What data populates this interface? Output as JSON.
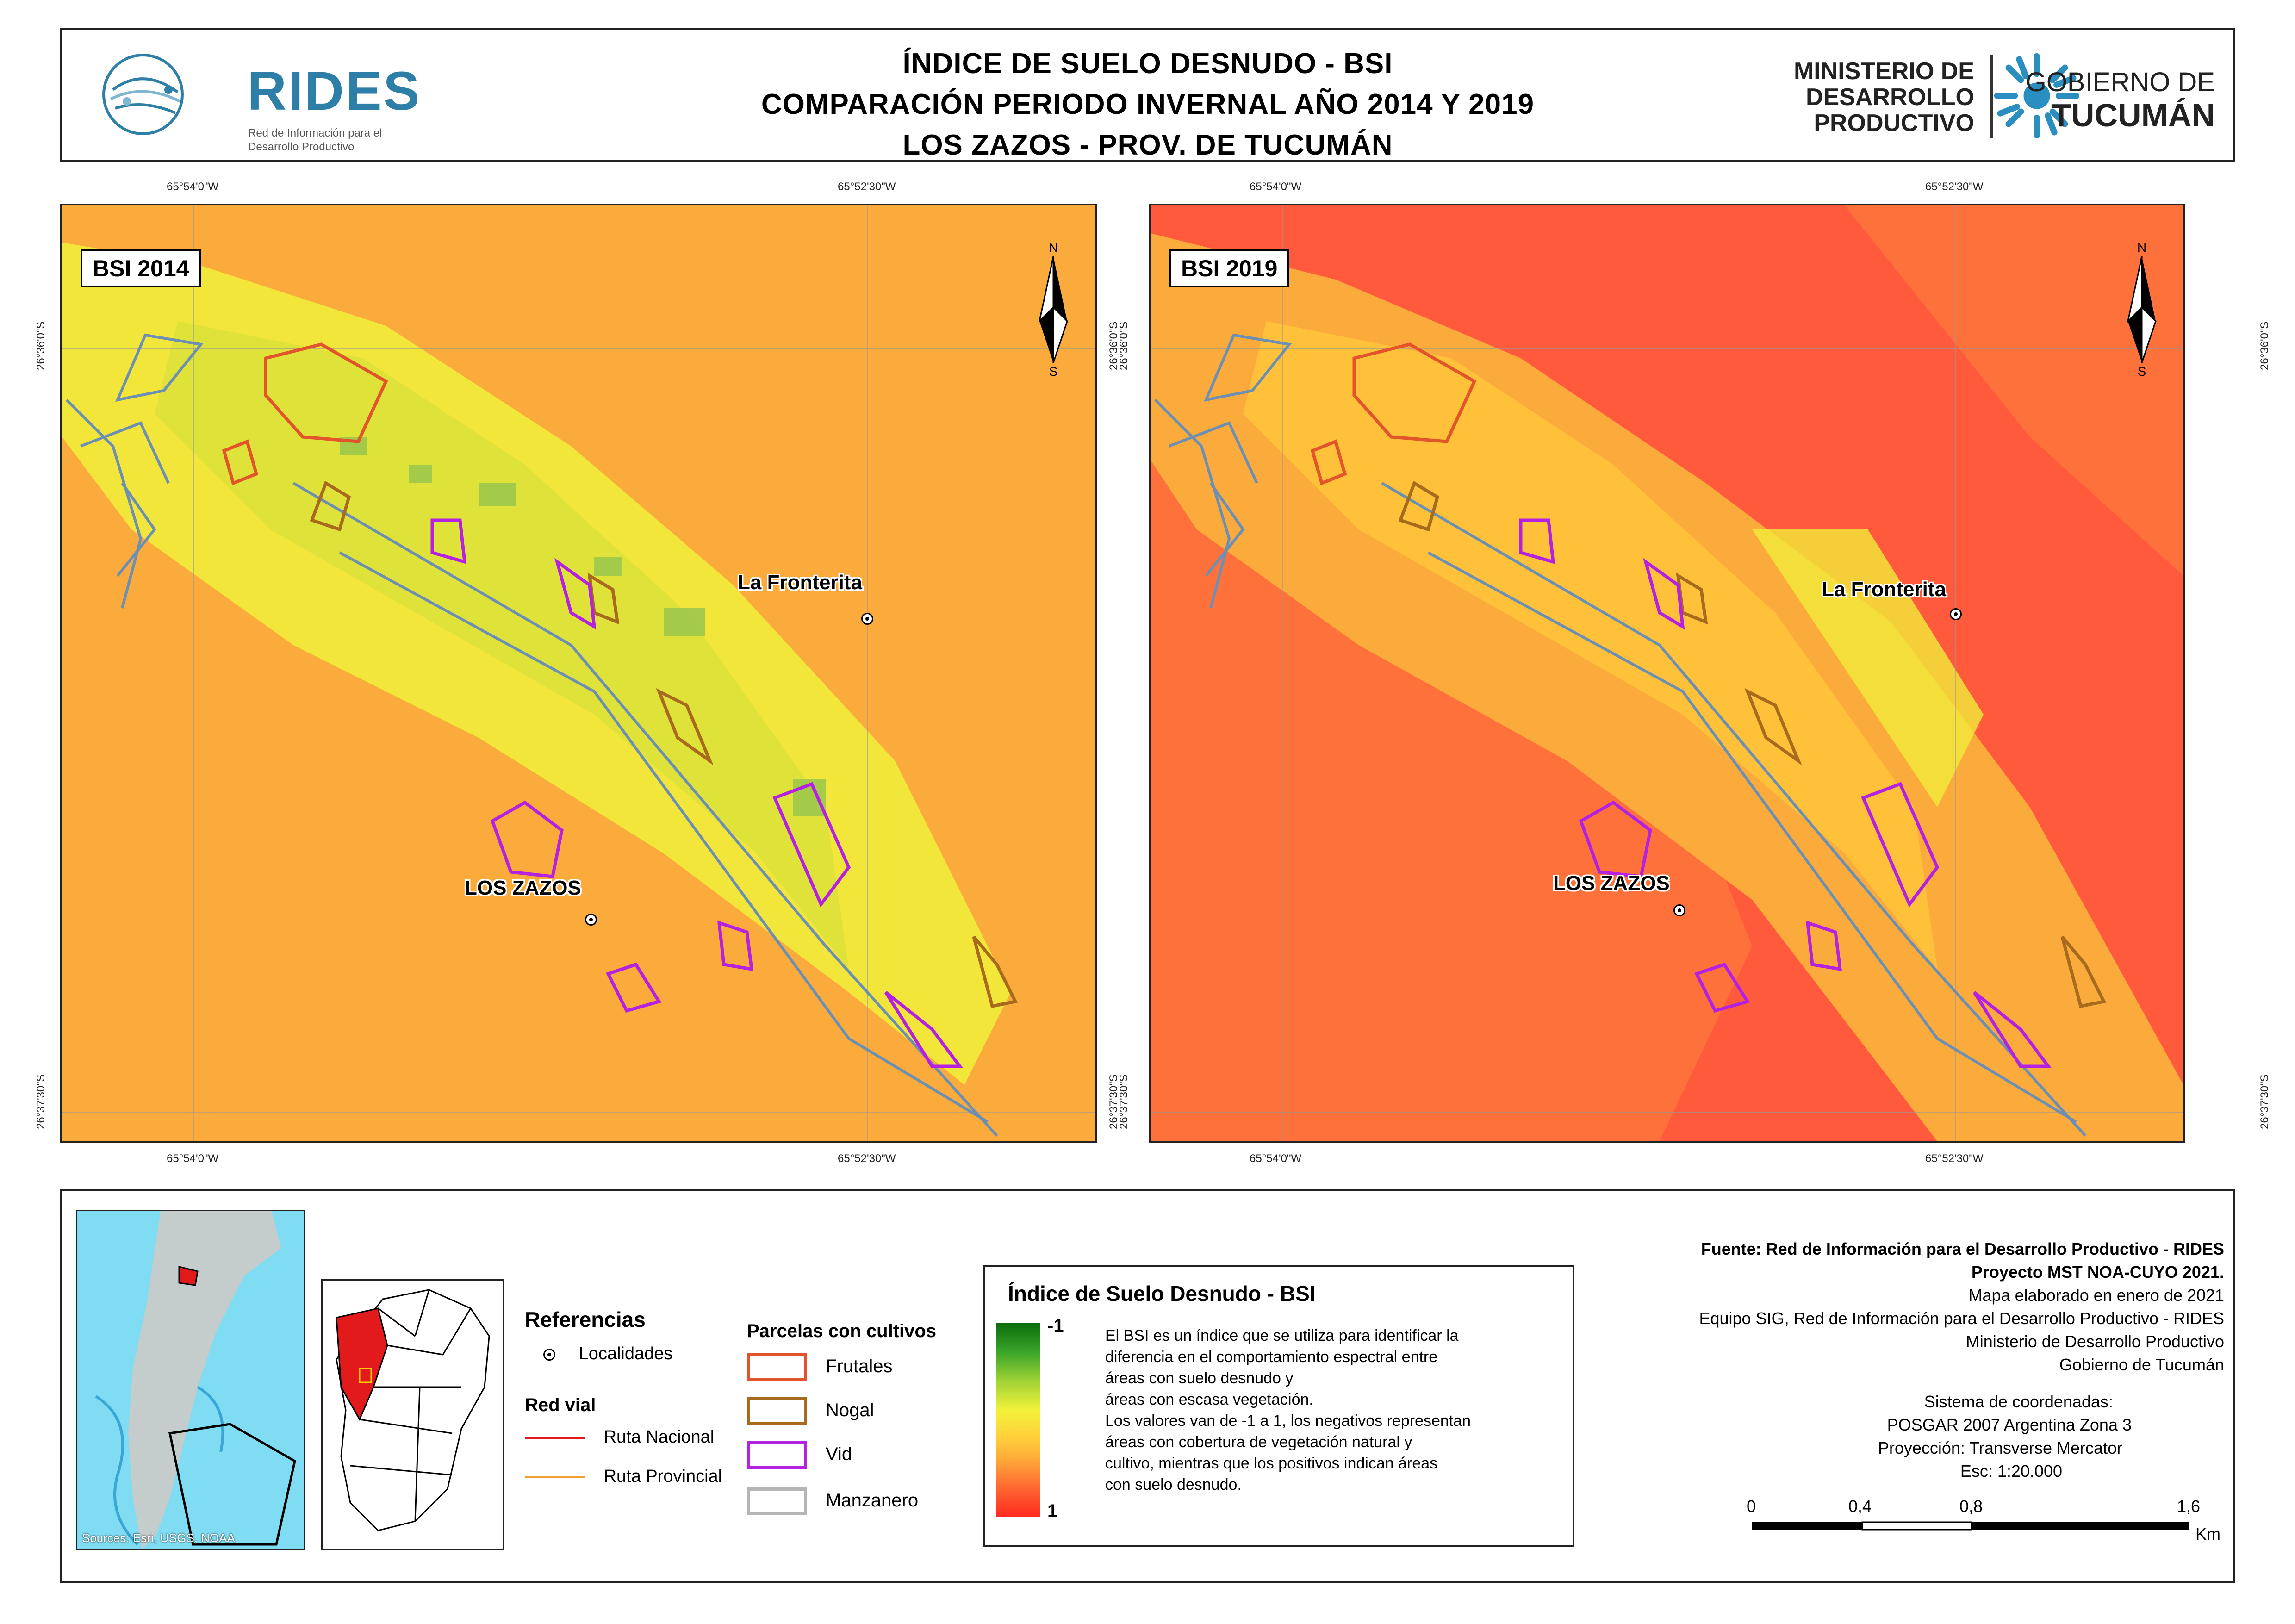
{
  "header": {
    "title_line1": "ÍNDICE DE SUELO DESNUDO - BSI",
    "title_line2": "COMPARACIÓN PERIODO INVERNAL AÑO 2014 Y 2019",
    "title_line3": "LOS ZAZOS - PROV. DE TUCUMÁN",
    "rides_name": "RIDES",
    "rides_sub1": "Red de Información para el",
    "rides_sub2": "Desarrollo Productivo",
    "ministry_line1": "MINISTERIO DE",
    "ministry_line2": "DESARROLLO",
    "ministry_line3": "PRODUCTIVO",
    "gov_line1": "GOBIERNO DE",
    "gov_line2": "TUCUMÁN"
  },
  "maps": [
    {
      "label": "BSI 2014",
      "background": "#fbaa3c",
      "localities": [
        "La Fronterita",
        "LOS ZAZOS"
      ]
    },
    {
      "label": "BSI 2019",
      "background": "#ff5a3c",
      "localities": [
        "La Fronterita",
        "LOS ZAZOS"
      ]
    }
  ],
  "coords": {
    "lon_west": "65°54'0\"W",
    "lon_east": "65°52'30\"W",
    "lat_north": "26°36'0\"S",
    "lat_south": "26°37'30\"S"
  },
  "north_arrow": {
    "n": "N",
    "s": "S"
  },
  "legend": {
    "inset_sources": "Sources: Esri, USGS, NOAA",
    "refs_title": "Referencias",
    "localidades": "Localidades",
    "red_vial": "Red vial",
    "ruta_nacional": "Ruta Nacional",
    "ruta_provincial": "Ruta Provincial",
    "parcels_title": "Parcelas con cultivos",
    "parcels": [
      {
        "label": "Frutales",
        "color": "#e2542a"
      },
      {
        "label": "Nogal",
        "color": "#a86a1c"
      },
      {
        "label": "Vid",
        "color": "#b421e0"
      },
      {
        "label": "Manzanero",
        "color": "#b5b5b5"
      }
    ],
    "bsi_title": "Índice de Suelo Desnudo - BSI",
    "bsi_min": "-1",
    "bsi_max": "1",
    "bsi_desc": [
      "El BSI es un índice que se utiliza para identificar la",
      "diferencia en el comportamiento espectral entre",
      "áreas con suelo desnudo y",
      "áreas con escasa vegetación.",
      "Los valores van de -1 a 1, los negativos representan",
      "áreas con cobertura de vegetación natural y",
      "cultivo, mientras que los positivos indican áreas",
      "con suelo desnudo."
    ]
  },
  "credits": {
    "line1": "Fuente: Red de Información para el Desarrollo Productivo - RIDES",
    "line2": "Proyecto MST NOA-CUYO 2021.",
    "line3": "Mapa elaborado en enero de 2021",
    "line4": "Equipo SIG, Red de Información para el Desarrollo Productivo - RIDES",
    "line5": "Ministerio de Desarrollo Productivo",
    "line6": "Gobierno de Tucumán",
    "line7": "Sistema de coordenadas:",
    "line8": "POSGAR 2007 Argentina Zona 3",
    "line9": "Proyección: Transverse Mercator",
    "line10": "Esc: 1:20.000"
  },
  "scalebar": {
    "l0": "0",
    "l1": "0,4",
    "l2": "0,8",
    "l3": "1,6",
    "unit": "Km"
  }
}
